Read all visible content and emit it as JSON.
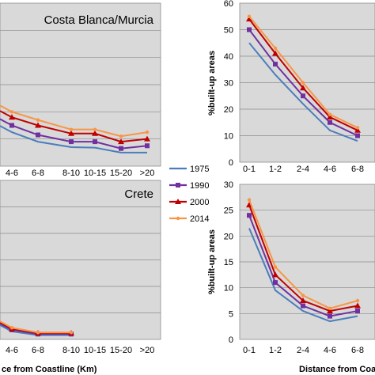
{
  "legend": {
    "placement": "center-between-panels",
    "entries": [
      {
        "name": "1975",
        "color": "#4a7ebb",
        "marker": "none"
      },
      {
        "name": "1990",
        "color": "#7030a0",
        "marker": "square"
      },
      {
        "name": "2000",
        "color": "#c00000",
        "marker": "triangle"
      },
      {
        "name": "2014",
        "color": "#f79646",
        "marker": "dot"
      }
    ]
  },
  "chart_data": [
    {
      "type": "line",
      "title": "Costa Blanca/Murcia",
      "xlabel": "",
      "ylabel": "",
      "categories": [
        "4-6",
        "6-8",
        "8-10",
        "10-15",
        "15-20",
        ">20"
      ],
      "ylim": [
        0,
        60
      ],
      "yticks": [],
      "grid": true,
      "series": [
        {
          "name": "1975",
          "values": [
            null,
            null,
            null,
            null,
            null,
            null
          ],
          "partial_values": [
            12.5,
            9,
            7,
            6.8,
            5,
            5
          ]
        },
        {
          "name": "1990",
          "values": [
            null,
            null,
            null,
            null,
            null,
            null
          ],
          "partial_values": [
            15,
            11.5,
            9,
            9,
            6.5,
            7.5
          ]
        },
        {
          "name": "2000",
          "values": [
            null,
            null,
            null,
            null,
            null,
            null
          ],
          "partial_values": [
            18,
            15,
            12,
            12,
            9,
            10
          ]
        },
        {
          "name": "2014",
          "values": [
            null,
            null,
            null,
            null,
            null,
            null
          ],
          "partial_values": [
            20,
            17,
            13.5,
            13.5,
            11,
            12.5
          ]
        }
      ]
    },
    {
      "type": "line",
      "title": "",
      "xlabel": "",
      "ylabel": "%built-up areas",
      "categories": [
        "0-1",
        "1-2",
        "2-4",
        "4-6",
        "6-8"
      ],
      "ylim": [
        0,
        60
      ],
      "yticks": [
        "0",
        "10",
        "20",
        "30",
        "40",
        "50",
        "60"
      ],
      "grid": true,
      "series": [
        {
          "name": "1975",
          "values": [
            45,
            33,
            22,
            12,
            8
          ]
        },
        {
          "name": "1990",
          "values": [
            50,
            37,
            25,
            15,
            10
          ]
        },
        {
          "name": "2000",
          "values": [
            54,
            41,
            28,
            17,
            12
          ]
        },
        {
          "name": "2014",
          "values": [
            55,
            43,
            30,
            18,
            13
          ]
        }
      ]
    },
    {
      "type": "line",
      "title": "Crete",
      "xlabel": "ce from Coastline (Km)",
      "ylabel": "",
      "categories": [
        "4-6",
        "6-8",
        "8-10",
        "10-15",
        "15-20",
        ">20"
      ],
      "ylim": [
        0,
        30
      ],
      "yticks": [],
      "grid": true,
      "series": [
        {
          "name": "1975",
          "values": [
            1.5,
            0.8,
            0.8,
            null,
            null,
            null
          ]
        },
        {
          "name": "1990",
          "values": [
            1.8,
            1.0,
            1.0,
            null,
            null,
            null
          ]
        },
        {
          "name": "2000",
          "values": [
            2.0,
            1.2,
            1.2,
            null,
            null,
            null
          ]
        },
        {
          "name": "2014",
          "values": [
            2.2,
            1.3,
            1.3,
            null,
            null,
            null
          ]
        }
      ]
    },
    {
      "type": "line",
      "title": "",
      "xlabel": "Distance from Coas",
      "ylabel": "%built-up areas",
      "categories": [
        "0-1",
        "1-2",
        "2-4",
        "4-6",
        "6-8"
      ],
      "ylim": [
        0,
        30
      ],
      "yticks": [
        "0",
        "5",
        "10",
        "15",
        "20",
        "25",
        "30"
      ],
      "grid": true,
      "series": [
        {
          "name": "1975",
          "values": [
            21.5,
            9.5,
            5.5,
            3.5,
            4.5
          ]
        },
        {
          "name": "1990",
          "values": [
            24,
            11,
            6.5,
            4.5,
            5.5
          ]
        },
        {
          "name": "2000",
          "values": [
            26,
            12.5,
            7.5,
            5.5,
            6.5
          ]
        },
        {
          "name": "2014",
          "values": [
            27,
            14,
            8.5,
            6,
            7.5
          ]
        }
      ]
    }
  ]
}
